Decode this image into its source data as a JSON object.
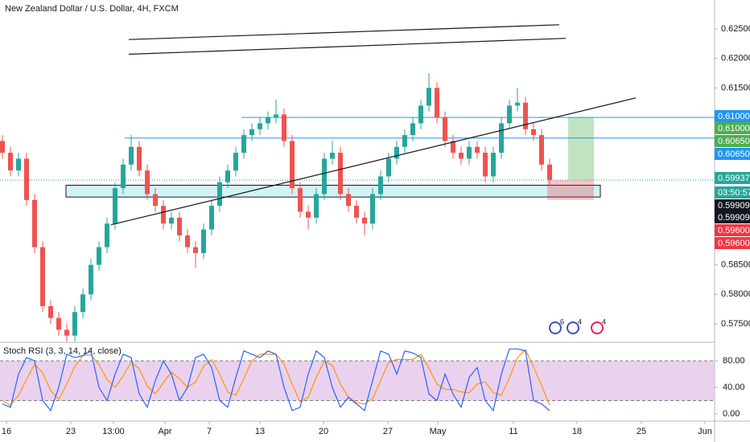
{
  "chart_data": {
    "type": "candlestick",
    "title": "New Zealand Dollar / U.S. Dollar, 4H, FXCM",
    "up_color": "#26a69a",
    "down_color": "#ef5350",
    "xlim": [
      -0.3,
      88.5
    ],
    "xticks": [
      {
        "value": 0.5,
        "label": "16"
      },
      {
        "value": 8.5,
        "label": "23"
      },
      {
        "value": 13.8,
        "label": "13:00"
      },
      {
        "value": 20.2,
        "label": "Apr"
      },
      {
        "value": 25.7,
        "label": "7"
      },
      {
        "value": 32,
        "label": "13"
      },
      {
        "value": 39.9,
        "label": "20"
      },
      {
        "value": 47.9,
        "label": "27"
      },
      {
        "value": 54.1,
        "label": "May"
      },
      {
        "value": 63.5,
        "label": "11"
      },
      {
        "value": 71.4,
        "label": "18"
      },
      {
        "value": 79.4,
        "label": "25"
      },
      {
        "value": 87.3,
        "label": "Jun"
      }
    ],
    "ylim": [
      0.572,
      0.6299
    ],
    "yticks": [
      {
        "value": 0.575,
        "label": "0.57500"
      },
      {
        "value": 0.58,
        "label": "0.58000"
      },
      {
        "value": 0.585,
        "label": "0.58500"
      },
      {
        "value": 0.615,
        "label": "0.61500"
      },
      {
        "value": 0.62,
        "label": "0.62000"
      },
      {
        "value": 0.625,
        "label": "0.62500"
      }
    ],
    "grid": false,
    "ohlc": [
      [
        0.606,
        0.607,
        0.603,
        0.604
      ],
      [
        0.604,
        0.605,
        0.6,
        0.601
      ],
      [
        0.601,
        0.604,
        0.6,
        0.603
      ],
      [
        0.603,
        0.604,
        0.595,
        0.596
      ],
      [
        0.596,
        0.597,
        0.587,
        0.588
      ],
      [
        0.588,
        0.589,
        0.577,
        0.578
      ],
      [
        0.578,
        0.579,
        0.575,
        0.576
      ],
      [
        0.576,
        0.577,
        0.573,
        0.574
      ],
      [
        0.574,
        0.575,
        0.572,
        0.573
      ],
      [
        0.573,
        0.578,
        0.572,
        0.577
      ],
      [
        0.577,
        0.581,
        0.576,
        0.58
      ],
      [
        0.58,
        0.586,
        0.579,
        0.585
      ],
      [
        0.585,
        0.589,
        0.584,
        0.588
      ],
      [
        0.588,
        0.593,
        0.587,
        0.592
      ],
      [
        0.592,
        0.599,
        0.591,
        0.598
      ],
      [
        0.598,
        0.603,
        0.597,
        0.602
      ],
      [
        0.602,
        0.607,
        0.601,
        0.605
      ],
      [
        0.605,
        0.606,
        0.6,
        0.601
      ],
      [
        0.601,
        0.602,
        0.596,
        0.597
      ],
      [
        0.597,
        0.598,
        0.594,
        0.595
      ],
      [
        0.595,
        0.596,
        0.591,
        0.592
      ],
      [
        0.592,
        0.594,
        0.591,
        0.593
      ],
      [
        0.593,
        0.594,
        0.589,
        0.59
      ],
      [
        0.59,
        0.591,
        0.587,
        0.588
      ],
      [
        0.588,
        0.589,
        0.5845,
        0.587
      ],
      [
        0.587,
        0.592,
        0.586,
        0.591
      ],
      [
        0.591,
        0.596,
        0.59,
        0.595
      ],
      [
        0.595,
        0.6,
        0.594,
        0.599
      ],
      [
        0.599,
        0.602,
        0.598,
        0.601
      ],
      [
        0.601,
        0.605,
        0.6,
        0.604
      ],
      [
        0.604,
        0.608,
        0.603,
        0.607
      ],
      [
        0.607,
        0.609,
        0.606,
        0.608
      ],
      [
        0.608,
        0.61,
        0.607,
        0.609
      ],
      [
        0.609,
        0.611,
        0.608,
        0.61
      ],
      [
        0.61,
        0.613,
        0.609,
        0.6105
      ],
      [
        0.6105,
        0.6115,
        0.605,
        0.606
      ],
      [
        0.606,
        0.607,
        0.597,
        0.598
      ],
      [
        0.598,
        0.599,
        0.593,
        0.594
      ],
      [
        0.594,
        0.595,
        0.591,
        0.593
      ],
      [
        0.593,
        0.598,
        0.592,
        0.597
      ],
      [
        0.597,
        0.604,
        0.596,
        0.603
      ],
      [
        0.603,
        0.606,
        0.602,
        0.604
      ],
      [
        0.604,
        0.605,
        0.596,
        0.597
      ],
      [
        0.597,
        0.598,
        0.594,
        0.595
      ],
      [
        0.595,
        0.596,
        0.592,
        0.593
      ],
      [
        0.593,
        0.594,
        0.59,
        0.592
      ],
      [
        0.592,
        0.598,
        0.591,
        0.597
      ],
      [
        0.597,
        0.601,
        0.596,
        0.6
      ],
      [
        0.6,
        0.604,
        0.599,
        0.603
      ],
      [
        0.603,
        0.606,
        0.602,
        0.605
      ],
      [
        0.605,
        0.608,
        0.604,
        0.607
      ],
      [
        0.607,
        0.61,
        0.606,
        0.609
      ],
      [
        0.609,
        0.613,
        0.608,
        0.612
      ],
      [
        0.612,
        0.6175,
        0.611,
        0.615
      ],
      [
        0.615,
        0.616,
        0.609,
        0.61
      ],
      [
        0.61,
        0.611,
        0.605,
        0.606
      ],
      [
        0.606,
        0.607,
        0.603,
        0.604
      ],
      [
        0.604,
        0.605,
        0.602,
        0.603
      ],
      [
        0.603,
        0.606,
        0.602,
        0.605
      ],
      [
        0.605,
        0.606,
        0.603,
        0.604
      ],
      [
        0.604,
        0.605,
        0.599,
        0.6
      ],
      [
        0.6,
        0.605,
        0.599,
        0.604
      ],
      [
        0.604,
        0.61,
        0.603,
        0.609
      ],
      [
        0.609,
        0.613,
        0.608,
        0.612
      ],
      [
        0.612,
        0.615,
        0.611,
        0.6125
      ],
      [
        0.6125,
        0.6135,
        0.607,
        0.608
      ],
      [
        0.608,
        0.609,
        0.606,
        0.607
      ],
      [
        0.607,
        0.608,
        0.601,
        0.602
      ],
      [
        0.602,
        0.603,
        0.5985,
        0.5994
      ]
    ],
    "trendlines": [
      {
        "x": [
          15.7,
          69.2
        ],
        "y": [
          0.6232,
          0.6257
        ]
      },
      {
        "x": [
          15.7,
          70.0
        ],
        "y": [
          0.6207,
          0.6234
        ]
      },
      {
        "x": [
          13.5,
          78.7
        ],
        "y": [
          0.5918,
          0.6133
        ]
      }
    ],
    "hlines": [
      {
        "x0": 29.7,
        "y": 0.61,
        "color": "#2196f3"
      },
      {
        "x0": 15.2,
        "y": 0.6065,
        "color": "#2196f3"
      }
    ],
    "current_price": {
      "y": 0.59937,
      "color": "#26a69a"
    },
    "zone": {
      "x": [
        7.9,
        74.3
      ],
      "y": [
        0.5965,
        0.5985
      ],
      "color": "#b2ebf2"
    },
    "position": {
      "x_end": 73.5,
      "target_x": 70.3,
      "stop_x": 67.7,
      "target": 0.61,
      "entry": 0.59937,
      "stop": 0.596
    },
    "price_labels": [
      {
        "label": "0.61000",
        "color": "#2196f3"
      },
      {
        "label": "0.61000",
        "color": "#4caf50"
      },
      {
        "label": "0.60650",
        "color": "#4caf50"
      },
      {
        "label": "0.60650",
        "color": "#2196f3"
      },
      {
        "label": "0.59937",
        "color": "#26a69a"
      },
      {
        "label": "03:50:57",
        "color": "#26a69a"
      },
      {
        "label": "0.59909",
        "color": "#131722"
      },
      {
        "label": "0.59909",
        "color": "#131722"
      },
      {
        "label": "0.59600",
        "color": "#f23645"
      },
      {
        "label": "0.59600",
        "color": "#f23645"
      }
    ],
    "events": [
      {
        "x": 68.7,
        "label": "6"
      },
      {
        "x": 70.9,
        "label": "4"
      },
      {
        "x": 73.9,
        "label": "4"
      }
    ],
    "indicator": {
      "title": "Stoch RSI (3, 3, 14, 14, close)",
      "ylim": [
        -8.5,
        105.5
      ],
      "yticks": [
        {
          "value": 0,
          "label": "0.00"
        },
        {
          "value": 40,
          "label": "40.00"
        },
        {
          "value": 80,
          "label": "80.00"
        }
      ],
      "bands": [
        20,
        80
      ],
      "band_color": "#e1bee7",
      "series": [
        {
          "color": "#2962ff",
          "values": [
            15,
            10,
            60,
            85,
            80,
            20,
            5,
            40,
            90,
            85,
            88,
            95,
            40,
            20,
            60,
            90,
            85,
            30,
            10,
            50,
            80,
            60,
            20,
            40,
            85,
            90,
            70,
            20,
            10,
            55,
            95,
            90,
            85,
            95,
            90,
            40,
            5,
            10,
            60,
            95,
            85,
            40,
            10,
            25,
            15,
            5,
            50,
            95,
            90,
            60,
            95,
            92,
            85,
            30,
            20,
            60,
            30,
            10,
            55,
            70,
            20,
            5,
            60,
            98,
            98,
            95,
            20,
            15,
            5
          ]
        },
        {
          "color": "#ff9800",
          "values": [
            20,
            13,
            28,
            52,
            75,
            62,
            35,
            22,
            45,
            72,
            88,
            89,
            74,
            52,
            40,
            57,
            78,
            68,
            42,
            30,
            47,
            63,
            53,
            40,
            48,
            72,
            82,
            60,
            33,
            28,
            53,
            80,
            90,
            90,
            90,
            75,
            45,
            18,
            25,
            55,
            80,
            73,
            45,
            25,
            17,
            15,
            23,
            50,
            78,
            82,
            82,
            82,
            90,
            69,
            45,
            37,
            37,
            33,
            32,
            45,
            48,
            32,
            28,
            54,
            85,
            97,
            71,
            43,
            13
          ]
        }
      ]
    }
  }
}
